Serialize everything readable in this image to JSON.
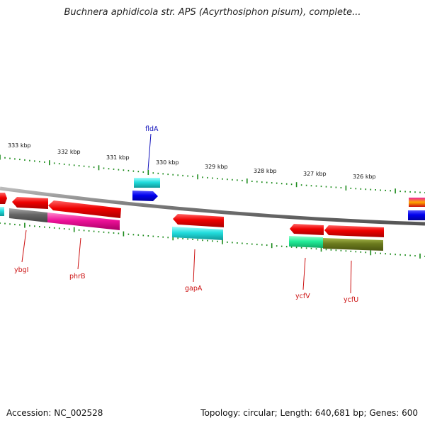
{
  "title": "Buchnera aphidicola str. APS (Acyrthosiphon pisum), complete...",
  "footer": {
    "accession": "Accession: NC_002528",
    "summary": "Topology: circular; Length: 640,681 bp; Genes: 600"
  },
  "ticks": [
    "333 kbp",
    "332 kbp",
    "331 kbp",
    "330 kbp",
    "329 kbp",
    "328 kbp",
    "327 kbp",
    "326 kbp"
  ],
  "gene_labels": [
    "fldA",
    "ybgI",
    "phrB",
    "gapA",
    "ycfV",
    "ycfU"
  ],
  "colors": {
    "backbone": "#777777",
    "tick": "#1a8a1a",
    "cds": "#ee1111",
    "blue_feature": "#1111dd",
    "cyan_feature": "#22cccc",
    "magenta_feature": "#ee2299",
    "grey_feature": "#666666",
    "green_feature": "#22ee99",
    "olive_feature": "#6b7a1e",
    "label_forward": "#1111bb",
    "label_reverse": "#cc1111"
  }
}
